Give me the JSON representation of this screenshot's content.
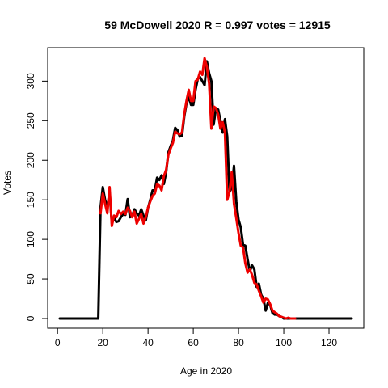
{
  "chart_data": {
    "type": "line",
    "title": "59 McDowell 2020 R = 0.997 votes = 12915",
    "xlabel": "Age in 2020",
    "ylabel": "Votes",
    "xlim": [
      1,
      130
    ],
    "ylim": [
      0,
      330
    ],
    "xticks": [
      0,
      20,
      40,
      60,
      80,
      100,
      120
    ],
    "yticks": [
      0,
      50,
      100,
      150,
      200,
      250,
      300
    ],
    "grid": false,
    "legend": "none",
    "series": [
      {
        "color": "#000000",
        "x": [
          1,
          2,
          3,
          4,
          5,
          6,
          7,
          8,
          9,
          10,
          11,
          12,
          13,
          14,
          15,
          16,
          17,
          18,
          19,
          20,
          21,
          22,
          23,
          24,
          25,
          26,
          27,
          28,
          29,
          30,
          31,
          32,
          33,
          34,
          35,
          36,
          37,
          38,
          39,
          40,
          41,
          42,
          43,
          44,
          45,
          46,
          47,
          48,
          49,
          50,
          51,
          52,
          53,
          54,
          55,
          56,
          57,
          58,
          59,
          60,
          61,
          62,
          63,
          64,
          65,
          66,
          67,
          68,
          69,
          70,
          71,
          72,
          73,
          74,
          75,
          76,
          77,
          78,
          79,
          80,
          81,
          82,
          83,
          84,
          85,
          86,
          87,
          88,
          89,
          90,
          91,
          92,
          93,
          94,
          95,
          96,
          97,
          98,
          99,
          100,
          101,
          102,
          103,
          104,
          105,
          106,
          107,
          108,
          109,
          110,
          111,
          112,
          113,
          114,
          115,
          116,
          117,
          118,
          119,
          120,
          121,
          122,
          123,
          124,
          125,
          126,
          127,
          128,
          129,
          130
        ],
        "values": [
          0,
          0,
          0,
          0,
          0,
          0,
          0,
          0,
          0,
          0,
          0,
          0,
          0,
          0,
          0,
          0,
          0,
          0,
          140,
          166,
          150,
          140,
          160,
          120,
          127,
          122,
          123,
          128,
          132,
          131,
          151,
          128,
          130,
          138,
          133,
          130,
          138,
          130,
          124,
          140,
          150,
          162,
          162,
          178,
          175,
          181,
          170,
          185,
          210,
          218,
          225,
          241,
          238,
          230,
          231,
          255,
          272,
          280,
          270,
          270,
          289,
          303,
          305,
          300,
          295,
          325,
          310,
          300,
          245,
          265,
          264,
          250,
          235,
          252,
          230,
          160,
          165,
          193,
          148,
          125,
          115,
          93,
          92,
          75,
          60,
          67,
          62,
          40,
          44,
          30,
          25,
          10,
          20,
          17,
          7,
          5,
          5,
          3,
          2,
          0,
          0,
          0,
          0,
          0,
          0,
          0,
          0,
          0,
          0,
          0,
          0,
          0,
          0,
          0,
          0,
          0,
          0,
          0,
          0,
          0,
          0,
          0,
          0,
          0,
          0,
          0,
          0,
          0,
          0,
          0
        ]
      },
      {
        "color": "#ee0000",
        "x": [
          19,
          20,
          21,
          22,
          23,
          24,
          25,
          26,
          27,
          28,
          29,
          30,
          31,
          32,
          33,
          34,
          35,
          36,
          37,
          38,
          39,
          40,
          41,
          42,
          43,
          44,
          45,
          46,
          47,
          48,
          49,
          50,
          51,
          52,
          53,
          54,
          55,
          56,
          57,
          58,
          59,
          60,
          61,
          62,
          63,
          64,
          65,
          66,
          67,
          68,
          69,
          70,
          71,
          72,
          73,
          74,
          75,
          76,
          77,
          78,
          79,
          80,
          81,
          82,
          83,
          84,
          85,
          86,
          87,
          88,
          89,
          90,
          91,
          92,
          93,
          94,
          95,
          96,
          97,
          98,
          99,
          100,
          101,
          102,
          103,
          104,
          105
        ],
        "values": [
          133,
          158,
          145,
          133,
          166,
          117,
          130,
          128,
          136,
          132,
          135,
          132,
          140,
          136,
          128,
          135,
          120,
          126,
          132,
          120,
          128,
          140,
          148,
          155,
          158,
          170,
          168,
          162,
          180,
          188,
          207,
          215,
          222,
          236,
          234,
          233,
          235,
          258,
          275,
          289,
          275,
          275,
          300,
          302,
          312,
          308,
          329,
          318,
          297,
          240,
          268,
          266,
          258,
          240,
          248,
          235,
          150,
          160,
          185,
          145,
          127,
          108,
          92,
          90,
          70,
          58,
          62,
          55,
          45,
          43,
          35,
          28,
          20,
          25,
          24,
          18,
          10,
          8,
          6,
          3,
          2,
          1,
          0,
          1,
          0,
          0,
          0
        ]
      }
    ]
  }
}
